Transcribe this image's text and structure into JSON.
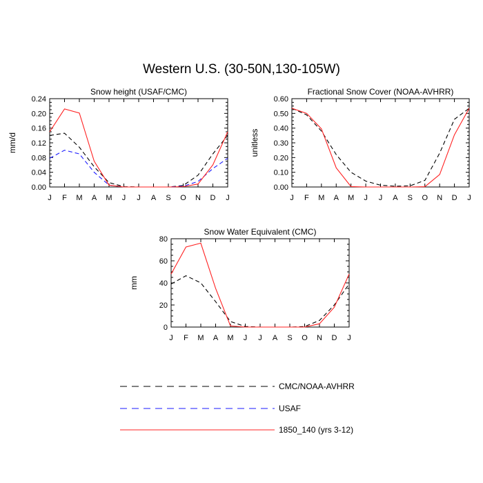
{
  "figure": {
    "title": "Western U.S. (30-50N,130-105W)"
  },
  "months": [
    "J",
    "F",
    "M",
    "A",
    "M",
    "J",
    "J",
    "A",
    "S",
    "O",
    "N",
    "D",
    "J"
  ],
  "colors": {
    "obs1": "#000000",
    "obs2": "#1a1aff",
    "model": "#ff2020"
  },
  "legend": {
    "items": [
      {
        "label": "CMC/NOAA-AVHRR",
        "style": "dashed",
        "colorKey": "obs1"
      },
      {
        "label": "USAF",
        "style": "dashed",
        "colorKey": "obs2"
      },
      {
        "label": "1850_140 (yrs 3-12)",
        "style": "solid",
        "colorKey": "model"
      }
    ]
  },
  "chart_data": [
    {
      "type": "line",
      "title": "Snow height (USAF/CMC)",
      "xlabel": "",
      "ylabel": "mm/d",
      "ylim": [
        0,
        0.24
      ],
      "yticks": [
        0,
        0.04,
        0.08,
        0.12,
        0.16,
        0.2,
        0.24
      ],
      "ytick_labels": [
        "0.00",
        "0.04",
        "0.08",
        "0.12",
        "0.16",
        "0.20",
        "0.24"
      ],
      "x": [
        "J",
        "F",
        "M",
        "A",
        "M",
        "J",
        "J",
        "A",
        "S",
        "O",
        "N",
        "D",
        "J"
      ],
      "series": [
        {
          "colorKey": "obs1",
          "style": "dashed",
          "values": [
            0.14,
            0.146,
            0.108,
            0.055,
            0.012,
            0.001,
            0.0,
            0.0,
            0.0,
            0.004,
            0.032,
            0.09,
            0.14
          ]
        },
        {
          "colorKey": "obs2",
          "style": "dashed",
          "values": [
            0.078,
            0.1,
            0.09,
            0.04,
            0.005,
            0.0,
            0.0,
            0.0,
            0.0,
            0.002,
            0.015,
            0.05,
            0.078
          ]
        },
        {
          "colorKey": "model",
          "style": "solid",
          "values": [
            0.15,
            0.212,
            0.201,
            0.07,
            0.005,
            0.0,
            0.0,
            0.0,
            0.0,
            0.001,
            0.008,
            0.06,
            0.15
          ]
        }
      ]
    },
    {
      "type": "line",
      "title": "Fractional Snow Cover (NOAA-AVHRR)",
      "xlabel": "",
      "ylabel": "unitless",
      "ylim": [
        0,
        0.6
      ],
      "yticks": [
        0,
        0.1,
        0.2,
        0.3,
        0.4,
        0.5,
        0.6
      ],
      "ytick_labels": [
        "0.00",
        "0.10",
        "0.20",
        "0.30",
        "0.40",
        "0.50",
        "0.60"
      ],
      "x": [
        "J",
        "F",
        "M",
        "A",
        "M",
        "J",
        "J",
        "A",
        "S",
        "O",
        "N",
        "D",
        "J"
      ],
      "series": [
        {
          "colorKey": "obs1",
          "style": "dashed",
          "values": [
            0.535,
            0.49,
            0.38,
            0.22,
            0.1,
            0.04,
            0.012,
            0.005,
            0.008,
            0.045,
            0.23,
            0.46,
            0.535
          ]
        },
        {
          "colorKey": "model",
          "style": "solid",
          "values": [
            0.535,
            0.5,
            0.395,
            0.13,
            0.003,
            0.0,
            0.0,
            0.0,
            0.0,
            0.002,
            0.085,
            0.355,
            0.535
          ]
        }
      ]
    },
    {
      "type": "line",
      "title": "Snow Water Equivalent (CMC)",
      "xlabel": "",
      "ylabel": "mm",
      "ylim": [
        0,
        80
      ],
      "yticks": [
        0,
        20,
        40,
        60,
        80
      ],
      "ytick_labels": [
        "0",
        "20",
        "40",
        "60",
        "80"
      ],
      "x": [
        "J",
        "F",
        "M",
        "A",
        "M",
        "J",
        "J",
        "A",
        "S",
        "O",
        "N",
        "D",
        "J"
      ],
      "series": [
        {
          "colorKey": "obs1",
          "style": "dashed",
          "values": [
            39,
            46.5,
            40,
            23,
            5,
            0.5,
            0,
            0,
            0,
            0.5,
            6,
            20,
            39
          ]
        },
        {
          "colorKey": "model",
          "style": "solid",
          "values": [
            48,
            72.5,
            76,
            35,
            1,
            0,
            0,
            0,
            0,
            0,
            3,
            18,
            48
          ]
        }
      ]
    }
  ]
}
